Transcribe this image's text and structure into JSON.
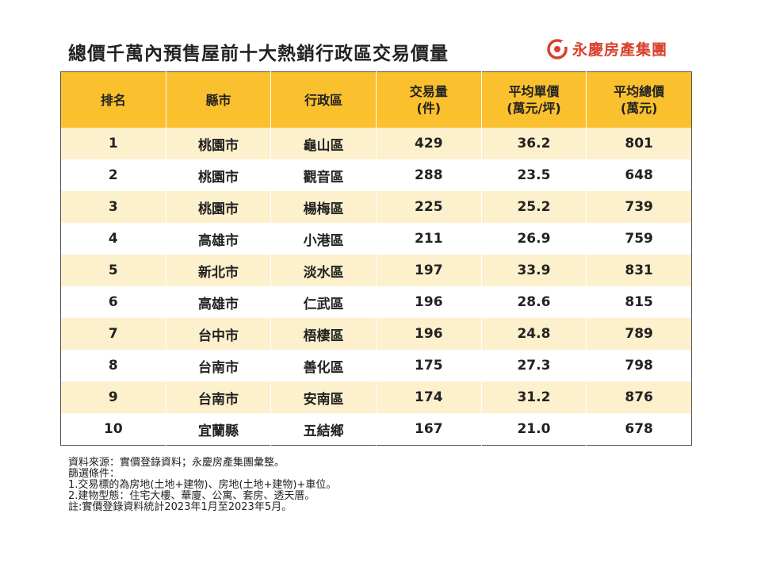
{
  "header": {
    "title": "總價千萬內預售屋前十大熱銷行政區交易價量",
    "logo": "永慶房產集團"
  },
  "table": {
    "columns": [
      [
        "排名"
      ],
      [
        "縣市"
      ],
      [
        "行政區"
      ],
      [
        "交易量",
        "(件)"
      ],
      [
        "平均單價",
        "(萬元/坪)"
      ],
      [
        "平均總價",
        "(萬元)"
      ]
    ],
    "rows": [
      [
        "1",
        "桃園市",
        "龜山區",
        "429",
        "36.2",
        "801"
      ],
      [
        "2",
        "桃園市",
        "觀音區",
        "288",
        "23.5",
        "648"
      ],
      [
        "3",
        "桃園市",
        "楊梅區",
        "225",
        "25.2",
        "739"
      ],
      [
        "4",
        "高雄市",
        "小港區",
        "211",
        "26.9",
        "759"
      ],
      [
        "5",
        "新北市",
        "淡水區",
        "197",
        "33.9",
        "831"
      ],
      [
        "6",
        "高雄市",
        "仁武區",
        "196",
        "28.6",
        "815"
      ],
      [
        "7",
        "台中市",
        "梧棲區",
        "196",
        "24.8",
        "789"
      ],
      [
        "8",
        "台南市",
        "善化區",
        "175",
        "27.3",
        "798"
      ],
      [
        "9",
        "台南市",
        "安南區",
        "174",
        "31.2",
        "876"
      ],
      [
        "10",
        "宜蘭縣",
        "五結鄉",
        "167",
        "21.0",
        "678"
      ]
    ]
  },
  "notes": [
    "資料來源：實價登錄資料；永慶房產集團彙整。",
    "篩選條件：",
    "1.交易標的為房地(土地+建物)、房地(土地+建物)+車位。",
    "2.建物型態：住宅大樓、華廈、公寓、套房、透天厝。",
    "註:實價登錄資料統計2023年1月至2023年5月。"
  ]
}
